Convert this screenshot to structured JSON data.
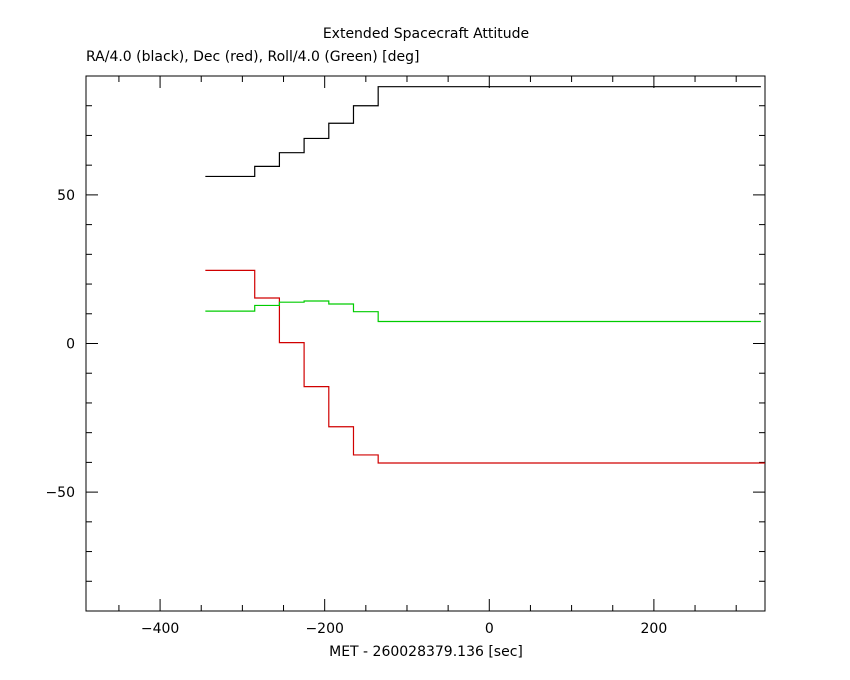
{
  "chart_data": {
    "type": "line",
    "title": "Extended Spacecraft Attitude",
    "subtitle": "RA/4.0 (black), Dec (red), Roll/4.0 (Green) [deg]",
    "xlabel": "MET - 260028379.136 [sec]",
    "ylabel": "",
    "xlim": [
      -490,
      335
    ],
    "ylim": [
      -90,
      90
    ],
    "x_ticks": [
      -400,
      -200,
      0,
      200
    ],
    "y_ticks": [
      -50,
      0,
      50
    ],
    "x_minor_step": 50,
    "y_minor_step": 10,
    "grid": false,
    "step": true,
    "series": [
      {
        "color": "#000000",
        "x": [
          -345,
          -285,
          -255,
          -225,
          -195,
          -165,
          -135,
          330
        ],
        "y": [
          56.2,
          59.6,
          64.2,
          69.0,
          74.1,
          80.0,
          86.4,
          86.4
        ]
      },
      {
        "color": "#d00000",
        "x": [
          -345,
          -285,
          -255,
          -225,
          -195,
          -165,
          -135,
          335
        ],
        "y": [
          24.6,
          15.3,
          0.3,
          -14.5,
          -28.0,
          -37.5,
          -40.2,
          -40.2
        ]
      },
      {
        "color": "#00cc00",
        "x": [
          -345,
          -285,
          -255,
          -225,
          -195,
          -165,
          -135,
          330
        ],
        "y": [
          10.9,
          12.8,
          13.9,
          14.3,
          13.3,
          10.7,
          7.4,
          7.4
        ]
      }
    ]
  }
}
